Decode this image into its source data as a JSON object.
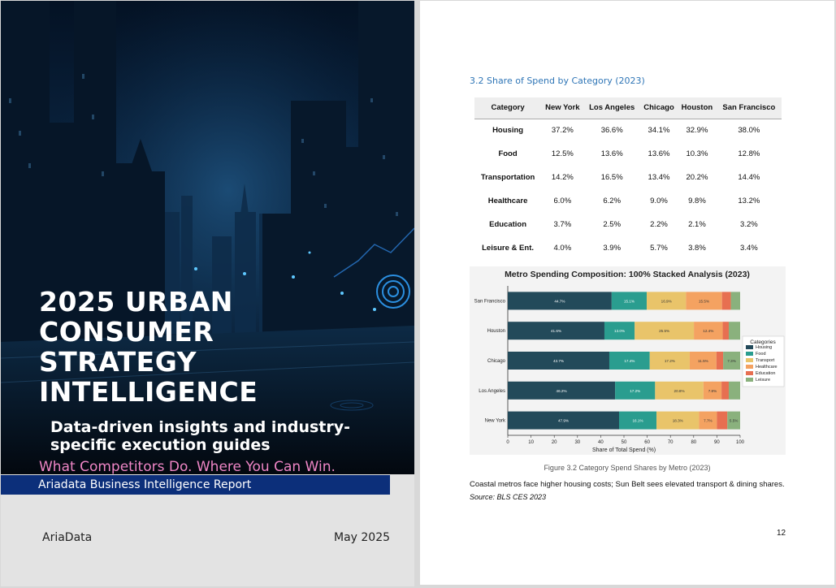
{
  "cover": {
    "title_lines": [
      "2025 URBAN",
      "CONSUMER",
      "STRATEGY",
      "INTELLIGENCE"
    ],
    "subtitle_lines": [
      "Data-driven insights and industry-",
      "specific execution guides"
    ],
    "tagline": "What Competitors Do. Where You Can Win.",
    "band_text": "Ariadata Business Intelligence Report",
    "brand": "AriaData",
    "date": "May 2025"
  },
  "report": {
    "section_title": "3.2 Share of Spend by Category (2023)",
    "table": {
      "headers": [
        "Category",
        "New York",
        "Los Angeles",
        "Chicago",
        "Houston",
        "San Francisco"
      ],
      "rows": [
        [
          "Housing",
          "37.2%",
          "36.6%",
          "34.1%",
          "32.9%",
          "38.0%"
        ],
        [
          "Food",
          "12.5%",
          "13.6%",
          "13.6%",
          "10.3%",
          "12.8%"
        ],
        [
          "Transportation",
          "14.2%",
          "16.5%",
          "13.4%",
          "20.2%",
          "14.4%"
        ],
        [
          "Healthcare",
          "6.0%",
          "6.2%",
          "9.0%",
          "9.8%",
          "13.2%"
        ],
        [
          "Education",
          "3.7%",
          "2.5%",
          "2.2%",
          "2.1%",
          "3.2%"
        ],
        [
          "Leisure & Ent.",
          "4.0%",
          "3.9%",
          "5.7%",
          "3.8%",
          "3.4%"
        ]
      ]
    },
    "figure_caption": "Figure 3.2  Category Spend Shares by Metro (2023)",
    "body_text": "Coastal metros face higher housing costs; Sun Belt sees elevated transport & dining shares.",
    "source": "Source: BLS CES 2023",
    "page_number": "12"
  },
  "chart_data": {
    "type": "bar",
    "orientation": "horizontal",
    "stacked": "100%",
    "title": "Metro Spending Composition: 100% Stacked Analysis (2023)",
    "xlabel": "Share of Total Spend (%)",
    "ylabel": "",
    "xlim": [
      0,
      100
    ],
    "x_ticks": [
      0,
      10,
      20,
      30,
      40,
      50,
      60,
      70,
      80,
      90,
      100
    ],
    "categories": [
      "San Francisco",
      "Houston",
      "Chicago",
      "Los Angeles",
      "New York"
    ],
    "legend_title": "Categories",
    "legend_position": "right",
    "grid": false,
    "series": [
      {
        "name": "Housing",
        "color": "#234a5a",
        "values": [
          44.7,
          41.6,
          43.7,
          46.2,
          47.9
        ],
        "labels": [
          "44.7%",
          "41.6%",
          "43.7%",
          "46.2%",
          "47.9%"
        ]
      },
      {
        "name": "Food",
        "color": "#2a9d8f",
        "values": [
          15.1,
          13.0,
          17.4,
          17.2,
          16.1
        ],
        "labels": [
          "15.1%",
          "13.0%",
          "17.4%",
          "17.2%",
          "16.1%"
        ]
      },
      {
        "name": "Transport",
        "color": "#e9c46a",
        "values": [
          16.9,
          25.5,
          17.2,
          20.8,
          18.3
        ],
        "labels": [
          "16.9%",
          "25.5%",
          "17.2%",
          "20.8%",
          "18.3%"
        ]
      },
      {
        "name": "Healthcare",
        "color": "#f4a261",
        "values": [
          15.5,
          12.4,
          11.5,
          7.8,
          7.7
        ],
        "labels": [
          "15.5%",
          "12.4%",
          "11.5%",
          "7.8%",
          "7.7%"
        ]
      },
      {
        "name": "Education",
        "color": "#e76f51",
        "values": [
          3.8,
          2.6,
          2.9,
          3.1,
          4.5
        ],
        "labels": [
          "",
          "",
          "",
          "",
          ""
        ]
      },
      {
        "name": "Leisure",
        "color": "#8ab17d",
        "values": [
          4.0,
          4.9,
          7.3,
          4.9,
          5.5
        ],
        "labels": [
          "",
          "",
          "7.3%",
          "",
          "5.5%"
        ]
      }
    ]
  }
}
